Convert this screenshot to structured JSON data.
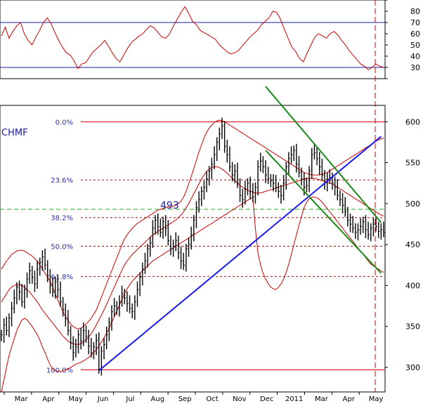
{
  "chart_data": [
    {
      "type": "line",
      "panel": "oscillator",
      "ylim": [
        20,
        90
      ],
      "yticks": [
        20,
        30,
        40,
        50,
        60,
        70,
        80,
        90
      ],
      "reference_lines": [
        {
          "y": 70,
          "color": "#1a1aa0"
        },
        {
          "y": 30,
          "color": "#1a1aa0"
        }
      ],
      "series": [
        {
          "color": "#cc0000",
          "values": [
            58,
            66,
            56,
            62,
            67,
            70,
            60,
            54,
            50,
            57,
            63,
            70,
            74,
            69,
            61,
            54,
            48,
            43,
            41,
            36,
            29,
            33,
            34,
            39,
            44,
            47,
            50,
            54,
            49,
            43,
            38,
            35,
            41,
            47,
            52,
            55,
            58,
            60,
            64,
            67,
            65,
            61,
            57,
            56,
            60,
            67,
            73,
            79,
            84,
            78,
            71,
            68,
            63,
            61,
            59,
            57,
            55,
            50,
            47,
            44,
            42,
            43,
            45,
            49,
            53,
            57,
            60,
            63,
            68,
            71,
            74,
            80,
            79,
            73,
            64,
            56,
            48,
            44,
            38,
            35,
            43,
            50,
            57,
            60,
            58,
            56,
            60,
            62,
            59,
            54,
            50,
            45,
            41,
            37,
            33,
            31,
            28,
            30,
            33,
            31,
            30
          ]
        }
      ]
    },
    {
      "type": "candlestick",
      "panel": "price",
      "title": "CHMF",
      "ylim": [
        270,
        620
      ],
      "yticks": [
        300,
        350,
        400,
        450,
        500,
        550,
        600
      ],
      "x_tick_labels": [
        "Mar",
        "Apr",
        "May",
        "Jun",
        "Jul",
        "Aug",
        "Sep",
        "Oct",
        "Nov",
        "Dec",
        "2011",
        "Mar",
        "Apr",
        "May"
      ],
      "annotations": [
        {
          "text": "493",
          "y": 493
        }
      ],
      "horizontal_lines": [
        {
          "y": 493,
          "color": "#22aa22",
          "style": "dashed"
        }
      ],
      "fibonacci": [
        {
          "label": "0.0%",
          "y": 600
        },
        {
          "label": "23.6%",
          "y": 529
        },
        {
          "label": "38.2%",
          "y": 483
        },
        {
          "label": "50.0%",
          "y": 448
        },
        {
          "label": "61.8%",
          "y": 411
        },
        {
          "label": "100.0%",
          "y": 297
        }
      ],
      "trendlines": [
        {
          "color": "#1a1aee",
          "from": {
            "i": 38,
            "y": 296
          },
          "to": {
            "i": 148,
            "y": 582
          }
        },
        {
          "color": "#1a8a1a",
          "from": {
            "i": 103,
            "y": 643
          },
          "to": {
            "i": 148,
            "y": 477
          }
        },
        {
          "color": "#1a8a1a",
          "from": {
            "i": 103,
            "y": 565
          },
          "to": {
            "i": 148,
            "y": 415
          }
        }
      ],
      "close": [
        340,
        352,
        345,
        360,
        372,
        385,
        398,
        392,
        380,
        395,
        408,
        418,
        410,
        402,
        420,
        428,
        435,
        425,
        412,
        400,
        392,
        405,
        395,
        380,
        370,
        360,
        345,
        330,
        318,
        325,
        340,
        332,
        345,
        338,
        326,
        318,
        325,
        333,
        298,
        320,
        328,
        340,
        355,
        368,
        375,
        372,
        380,
        390,
        385,
        378,
        372,
        368,
        380,
        395,
        410,
        420,
        430,
        445,
        452,
        470,
        480,
        472,
        465,
        478,
        470,
        455,
        445,
        448,
        455,
        440,
        430,
        425,
        445,
        450,
        462,
        480,
        495,
        505,
        515,
        520,
        530,
        540,
        548,
        560,
        575,
        585,
        595,
        570,
        560,
        545,
        535,
        540,
        525,
        510,
        505,
        518,
        525,
        515,
        508,
        520,
        545,
        552,
        545,
        535,
        530,
        528,
        525,
        520,
        515,
        510,
        525,
        545,
        555,
        560,
        565,
        548,
        538,
        530,
        520,
        522,
        540,
        560,
        562,
        555,
        545,
        535,
        525,
        530,
        532,
        525,
        520,
        510,
        505,
        498,
        490,
        480,
        475,
        470,
        465,
        468,
        472,
        478,
        468,
        462,
        470,
        475,
        472,
        466,
        468,
        465
      ],
      "bb_upper": [
        420,
        425,
        430,
        434,
        438,
        440,
        442,
        443,
        443,
        442,
        440,
        438,
        436,
        433,
        430,
        425,
        420,
        415,
        410,
        405,
        398,
        390,
        382,
        375,
        368,
        362,
        357,
        353,
        350,
        348,
        347,
        348,
        350,
        353,
        356,
        360,
        365,
        370,
        378,
        386,
        394,
        402,
        410,
        418,
        426,
        434,
        442,
        450,
        457,
        462,
        466,
        470,
        473,
        476,
        478,
        480,
        482,
        484,
        486,
        488,
        490,
        492,
        493,
        494,
        495,
        496,
        496,
        497,
        498,
        500,
        503,
        508,
        515,
        524,
        533,
        543,
        553,
        563,
        572,
        580,
        587,
        592,
        596,
        599,
        601,
        602,
        601,
        600,
        598,
        596,
        594,
        592,
        590,
        588,
        586,
        584,
        582,
        580,
        578,
        576,
        574,
        572,
        570,
        568,
        566,
        564,
        562,
        560,
        558,
        556,
        554,
        552,
        550,
        548,
        546,
        544,
        542,
        540,
        538,
        537,
        536,
        535,
        535,
        535,
        535,
        536,
        537,
        538,
        540,
        542,
        544,
        546,
        548,
        550,
        552,
        554,
        556,
        558,
        560,
        562,
        564,
        566,
        568,
        570,
        572,
        574,
        576,
        578,
        579,
        580
      ],
      "bb_middle": [
        380,
        385,
        390,
        395,
        398,
        400,
        401,
        401,
        400,
        398,
        395,
        392,
        388,
        384,
        380,
        375,
        370,
        366,
        362,
        358,
        354,
        350,
        346,
        342,
        338,
        335,
        332,
        330,
        329,
        328,
        328,
        329,
        331,
        334,
        337,
        341,
        346,
        352,
        358,
        364,
        370,
        377,
        384,
        391,
        398,
        405,
        412,
        419,
        425,
        430,
        434,
        438,
        441,
        444,
        447,
        450,
        453,
        456,
        459,
        462,
        464,
        466,
        468,
        470,
        472,
        474,
        476,
        478,
        480,
        483,
        486,
        490,
        495,
        500,
        506,
        512,
        518,
        524,
        530,
        535,
        539,
        542,
        544,
        545,
        545,
        544,
        542,
        540,
        537,
        534,
        531,
        528,
        525,
        522,
        520,
        518,
        516,
        515,
        514,
        513,
        513,
        513,
        514,
        515,
        516,
        517,
        518,
        519,
        520,
        521,
        522,
        523,
        524,
        525,
        526,
        527,
        528,
        529,
        530,
        531,
        531,
        531,
        531,
        530,
        529,
        528,
        527,
        526,
        525,
        524,
        522,
        520,
        518,
        516,
        514,
        512,
        510,
        508,
        506,
        504,
        502,
        500,
        498,
        496,
        494,
        492,
        490,
        488,
        486,
        485
      ],
      "bb_lower": [
        270,
        285,
        300,
        315,
        325,
        335,
        345,
        352,
        358,
        360,
        358,
        354,
        350,
        345,
        340,
        333,
        325,
        318,
        310,
        303,
        298,
        296,
        295,
        295,
        296,
        297,
        298,
        300,
        302,
        304,
        305,
        306,
        308,
        310,
        312,
        315,
        318,
        322,
        326,
        331,
        336,
        342,
        348,
        355,
        362,
        369,
        376,
        383,
        390,
        396,
        401,
        405,
        409,
        412,
        415,
        418,
        421,
        424,
        427,
        430,
        432,
        434,
        436,
        438,
        440,
        442,
        444,
        446,
        448,
        450,
        452,
        454,
        456,
        458,
        460,
        462,
        464,
        466,
        468,
        470,
        472,
        474,
        476,
        478,
        480,
        482,
        484,
        486,
        488,
        490,
        492,
        494,
        496,
        498,
        500,
        502,
        504,
        506,
        508,
        470,
        440,
        425,
        415,
        408,
        402,
        398,
        396,
        395,
        398,
        402,
        408,
        416,
        426,
        438,
        450,
        462,
        474,
        485,
        495,
        502,
        506,
        508,
        508,
        507,
        505,
        502,
        498,
        494,
        490,
        486,
        482,
        478,
        474,
        470,
        466,
        462,
        458,
        454,
        450,
        446,
        442,
        438,
        434,
        430,
        426,
        424,
        422,
        420,
        418,
        416
      ]
    }
  ]
}
